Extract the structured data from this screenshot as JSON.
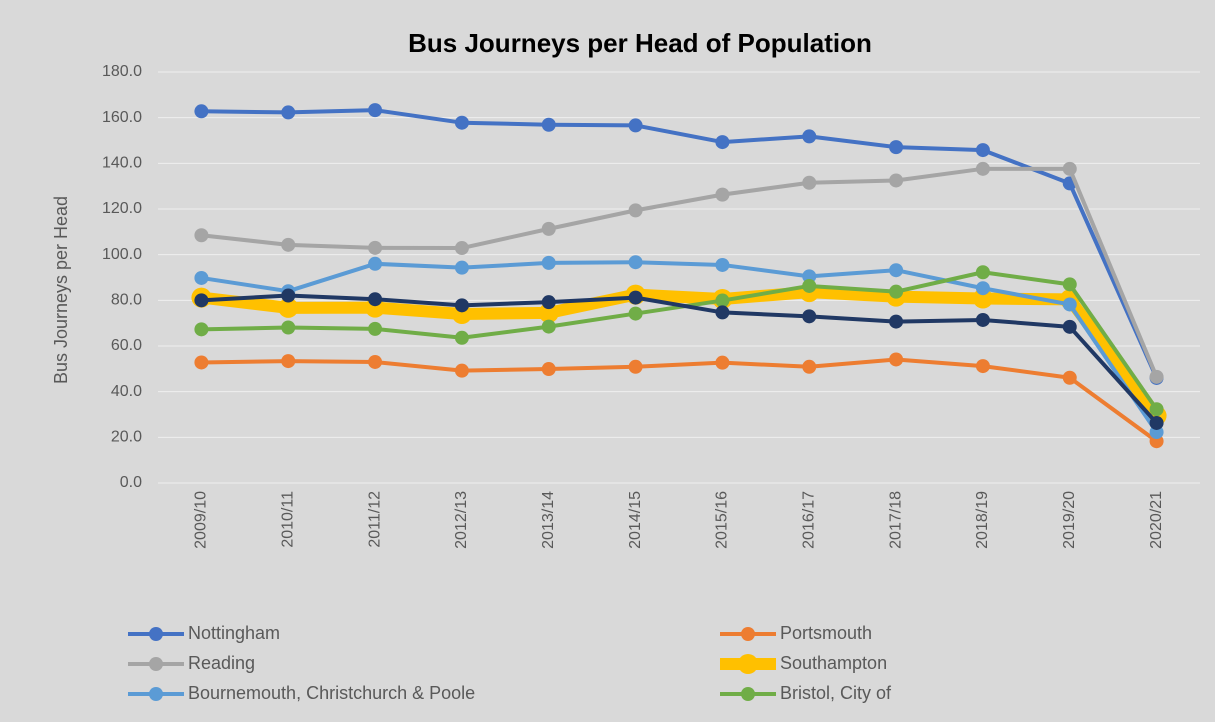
{
  "chart_data": {
    "type": "line",
    "title": "Bus Journeys per Head of Population",
    "ylabel": "Bus Journeys per Head",
    "categories": [
      "2009/10",
      "2010/11",
      "2011/12",
      "2012/13",
      "2013/14",
      "2014/15",
      "2015/16",
      "2016/17",
      "2017/18",
      "2018/19",
      "2019/20",
      "2020/21"
    ],
    "ylim": [
      0,
      180
    ],
    "yticks": [
      {
        "value": 0,
        "label": "0.0"
      },
      {
        "value": 20,
        "label": "20.0"
      },
      {
        "value": 40,
        "label": "40.0"
      },
      {
        "value": 60,
        "label": "60.0"
      },
      {
        "value": 80,
        "label": "80.0"
      },
      {
        "value": 100,
        "label": "100.0"
      },
      {
        "value": 120,
        "label": "120.0"
      },
      {
        "value": 140,
        "label": "140.0"
      },
      {
        "value": 160,
        "label": "160.0"
      },
      {
        "value": 180,
        "label": "180.0"
      }
    ],
    "grid": true,
    "series": [
      {
        "name": "Nottingham",
        "color": "#4472c4",
        "line_width": 4,
        "values": [
          162.8,
          162.3,
          163.3,
          157.8,
          156.9,
          156.6,
          149.3,
          151.8,
          147.1,
          145.8,
          131.2,
          46
        ]
      },
      {
        "name": "Portsmouth",
        "color": "#ed7d31",
        "line_width": 4,
        "values": [
          52.8,
          53.4,
          53,
          49.2,
          49.9,
          50.9,
          52.7,
          50.9,
          54.1,
          51.2,
          46.1,
          18.3
        ]
      },
      {
        "name": "Reading",
        "color": "#a5a5a5",
        "line_width": 4,
        "values": [
          108.5,
          104.3,
          103,
          102.9,
          111.3,
          119.4,
          126.3,
          131.5,
          132.5,
          137.6,
          137.6,
          46.5
        ]
      },
      {
        "name": "Southampton",
        "color": "#ffc000",
        "line_width": 12,
        "values": [
          81.2,
          76.7,
          76.8,
          74,
          74.5,
          82.5,
          80.6,
          83.6,
          81.6,
          80.8,
          80.4,
          29.5
        ]
      },
      {
        "name": "Bournemouth, Christchurch & Poole",
        "color": "#5b9bd5",
        "line_width": 4,
        "values": [
          89.8,
          84,
          96,
          94.3,
          96.4,
          96.7,
          95.5,
          90.5,
          93.2,
          85.3,
          78.2,
          22.3
        ]
      },
      {
        "name": "Bristol, City of",
        "color": "#70ad47",
        "line_width": 4,
        "values": [
          67.3,
          68.1,
          67.5,
          63.6,
          68.5,
          74.2,
          79.9,
          86.3,
          83.8,
          92.3,
          87,
          32.3
        ]
      },
      {
        "color": "#203864",
        "line_width": 4,
        "values": [
          80,
          82.1,
          80.5,
          77.8,
          79.2,
          81.2,
          74.7,
          73,
          70.7,
          71.4,
          68.4,
          26.3
        ]
      }
    ]
  }
}
